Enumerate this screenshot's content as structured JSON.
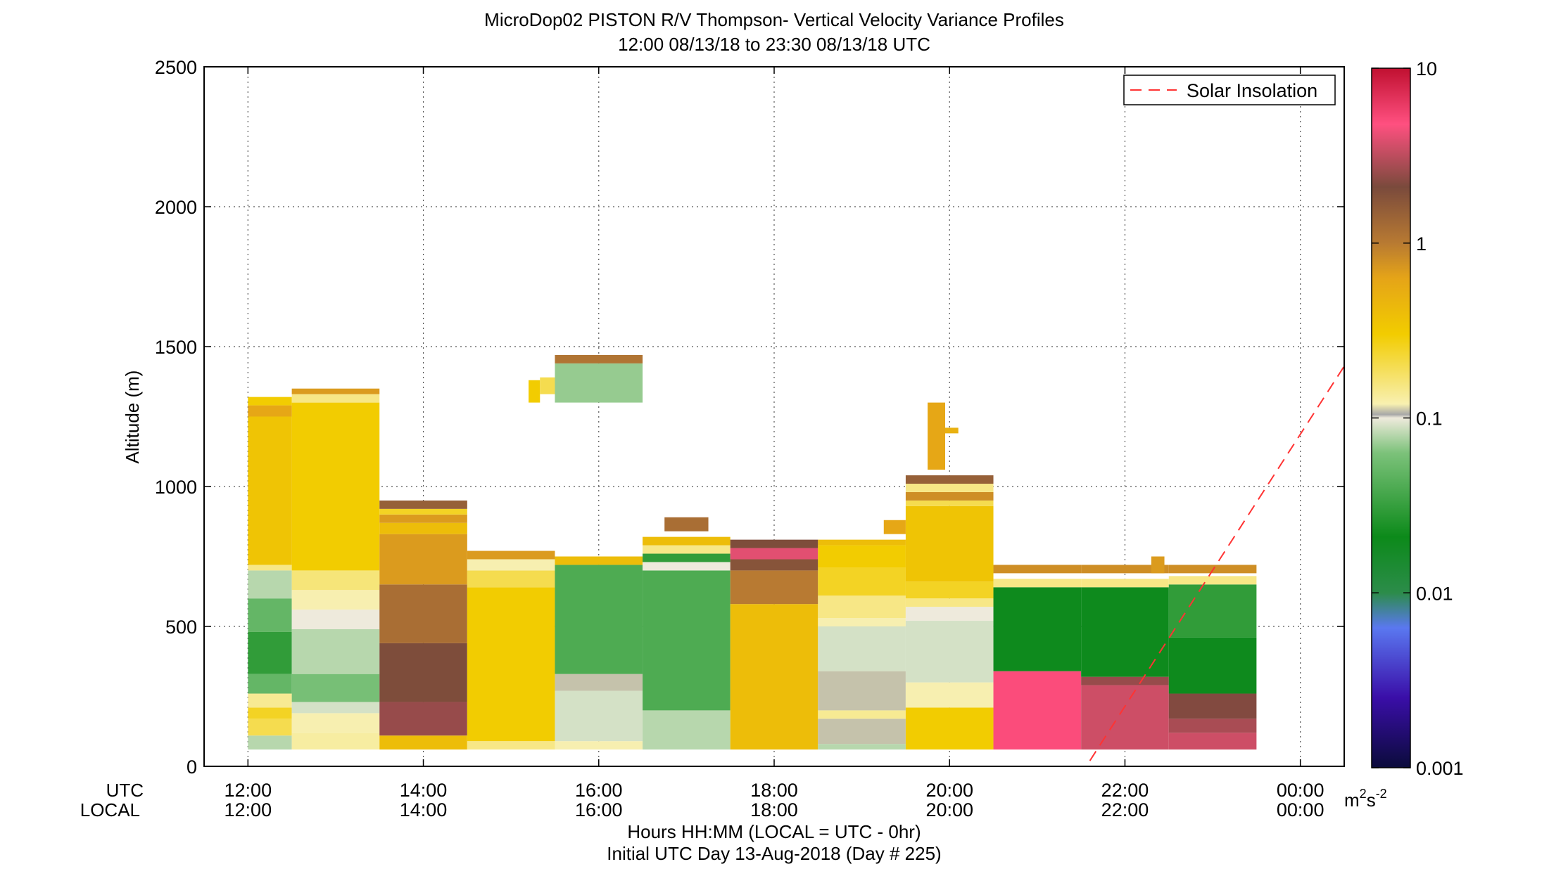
{
  "chart_data": {
    "type": "heatmap",
    "title": "MicroDop02 PISTON R/V Thompson- Vertical Velocity Variance Profiles",
    "subtitle": "12:00 08/13/18 to 23:30 08/13/18  UTC",
    "xlabel": "Hours HH:MM  (LOCAL = UTC - 0hr)",
    "xlabel2": "Initial UTC Day 13-Aug-2018 (Day # 225)",
    "ylabel": "Altitude (m)",
    "x_row_labels": [
      "UTC",
      "LOCAL"
    ],
    "xlim": [
      11.5,
      24.5
    ],
    "ylim": [
      0,
      2500
    ],
    "x_ticks": [
      12,
      14,
      16,
      18,
      20,
      22,
      24
    ],
    "x_tick_labels_utc": [
      "12:00",
      "14:00",
      "16:00",
      "18:00",
      "20:00",
      "22:00",
      "00:00"
    ],
    "x_tick_labels_local": [
      "12:00",
      "14:00",
      "16:00",
      "18:00",
      "20:00",
      "22:00",
      "00:00"
    ],
    "y_ticks": [
      0,
      500,
      1000,
      1500,
      2000,
      2500
    ],
    "y_tick_labels": [
      "0",
      "500",
      "1000",
      "1500",
      "2000",
      "2500"
    ],
    "grid": true,
    "legend": {
      "position": "top-right",
      "entries": [
        {
          "label": "Solar Insolation",
          "color": "#ff3333",
          "style": "dashed"
        }
      ]
    },
    "colorbar": {
      "scale": "log",
      "range": [
        0.001,
        10
      ],
      "tick_values": [
        0.001,
        0.01,
        0.1,
        1,
        10
      ],
      "tick_labels": [
        "0.001",
        "0.01",
        "0.1",
        "1",
        "10"
      ],
      "units_base": "m",
      "units_exp1": "2",
      "units_mid": "s",
      "units_exp2": "-2"
    },
    "solar_insolation_line": {
      "x": [
        21.6,
        24.5
      ],
      "y": [
        20,
        1430
      ]
    },
    "columns": [
      {
        "x": [
          12.0,
          12.5
        ],
        "segments": [
          {
            "y": [
              60,
              110
            ],
            "v": 0.08
          },
          {
            "y": [
              110,
              170
            ],
            "v": 0.2
          },
          {
            "y": [
              170,
              210
            ],
            "v": 0.25
          },
          {
            "y": [
              210,
              260
            ],
            "v": 0.14
          },
          {
            "y": [
              260,
              330
            ],
            "v": 0.05
          },
          {
            "y": [
              330,
              480
            ],
            "v": 0.03
          },
          {
            "y": [
              480,
              600
            ],
            "v": 0.05
          },
          {
            "y": [
              600,
              700
            ],
            "v": 0.08
          },
          {
            "y": [
              700,
              720
            ],
            "v": 0.15
          },
          {
            "y": [
              720,
              1250
            ],
            "v": 0.35
          },
          {
            "y": [
              1250,
              1290
            ],
            "v": 0.6
          },
          {
            "y": [
              1290,
              1320
            ],
            "v": 0.3
          }
        ]
      },
      {
        "x": [
          12.5,
          13.5
        ],
        "segments": [
          {
            "y": [
              60,
              120
            ],
            "v": 0.13
          },
          {
            "y": [
              120,
              190
            ],
            "v": 0.12
          },
          {
            "y": [
              190,
              230
            ],
            "v": 0.09
          },
          {
            "y": [
              230,
              330
            ],
            "v": 0.06
          },
          {
            "y": [
              330,
              490
            ],
            "v": 0.08
          },
          {
            "y": [
              490,
              560
            ],
            "v": 0.1
          },
          {
            "y": [
              560,
              630
            ],
            "v": 0.12
          },
          {
            "y": [
              630,
              700
            ],
            "v": 0.16
          },
          {
            "y": [
              700,
              1300
            ],
            "v": 0.3
          },
          {
            "y": [
              1300,
              1330
            ],
            "v": 0.15
          },
          {
            "y": [
              1330,
              1350
            ],
            "v": 0.7
          }
        ]
      },
      {
        "x": [
          13.5,
          14.5
        ],
        "segments": [
          {
            "y": [
              60,
              110
            ],
            "v": 0.4
          },
          {
            "y": [
              110,
              230
            ],
            "v": 2.5
          },
          {
            "y": [
              230,
              440
            ],
            "v": 2.0
          },
          {
            "y": [
              440,
              650
            ],
            "v": 1.2
          },
          {
            "y": [
              650,
              830
            ],
            "v": 0.7
          },
          {
            "y": [
              830,
              870
            ],
            "v": 0.4
          },
          {
            "y": [
              870,
              900
            ],
            "v": 0.7
          },
          {
            "y": [
              900,
              920
            ],
            "v": 0.25
          },
          {
            "y": [
              920,
              950
            ],
            "v": 1.5
          }
        ]
      },
      {
        "x": [
          14.5,
          15.5
        ],
        "segments": [
          {
            "y": [
              60,
              90
            ],
            "v": 0.15
          },
          {
            "y": [
              90,
              640
            ],
            "v": 0.3
          },
          {
            "y": [
              640,
              700
            ],
            "v": 0.2
          },
          {
            "y": [
              700,
              740
            ],
            "v": 0.12
          },
          {
            "y": [
              740,
              770
            ],
            "v": 0.7
          }
        ]
      },
      {
        "x": [
          15.5,
          16.5
        ],
        "segments": [
          {
            "y": [
              60,
              90
            ],
            "v": 0.12
          },
          {
            "y": [
              90,
              270
            ],
            "v": 0.09
          },
          {
            "y": [
              270,
              330
            ],
            "v": 0.11
          },
          {
            "y": [
              330,
              720
            ],
            "v": 0.04
          },
          {
            "y": [
              720,
              750
            ],
            "v": 0.4
          }
        ]
      },
      {
        "x": [
          16.5,
          17.5
        ],
        "segments": [
          {
            "y": [
              60,
              200
            ],
            "v": 0.08
          },
          {
            "y": [
              200,
              700
            ],
            "v": 0.04
          },
          {
            "y": [
              700,
              730
            ],
            "v": 0.1
          },
          {
            "y": [
              730,
              760
            ],
            "v": 0.03
          },
          {
            "y": [
              760,
              790
            ],
            "v": 0.15
          },
          {
            "y": [
              790,
              820
            ],
            "v": 0.4
          }
        ]
      },
      {
        "x": [
          17.5,
          18.5
        ],
        "segments": [
          {
            "y": [
              60,
              580
            ],
            "v": 0.4
          },
          {
            "y": [
              580,
              700
            ],
            "v": 1.0
          },
          {
            "y": [
              700,
              740
            ],
            "v": 1.8
          },
          {
            "y": [
              740,
              780
            ],
            "v": 4.0
          },
          {
            "y": [
              780,
              810
            ],
            "v": 2.0
          }
        ]
      },
      {
        "x": [
          18.5,
          19.5
        ],
        "segments": [
          {
            "y": [
              60,
              80
            ],
            "v": 0.08
          },
          {
            "y": [
              80,
              170
            ],
            "v": 0.11
          },
          {
            "y": [
              170,
              200
            ],
            "v": 0.14
          },
          {
            "y": [
              200,
              340
            ],
            "v": 0.11
          },
          {
            "y": [
              340,
              500
            ],
            "v": 0.09
          },
          {
            "y": [
              500,
              530
            ],
            "v": 0.12
          },
          {
            "y": [
              530,
              610
            ],
            "v": 0.15
          },
          {
            "y": [
              610,
              710
            ],
            "v": 0.25
          },
          {
            "y": [
              710,
              790
            ],
            "v": 0.3
          },
          {
            "y": [
              790,
              810
            ],
            "v": 0.4
          }
        ]
      },
      {
        "x": [
          19.5,
          20.5
        ],
        "segments": [
          {
            "y": [
              60,
              210
            ],
            "v": 0.3
          },
          {
            "y": [
              210,
              300
            ],
            "v": 0.12
          },
          {
            "y": [
              300,
              520
            ],
            "v": 0.09
          },
          {
            "y": [
              520,
              570
            ],
            "v": 0.1
          },
          {
            "y": [
              570,
              600
            ],
            "v": 0.15
          },
          {
            "y": [
              600,
              660
            ],
            "v": 0.25
          },
          {
            "y": [
              660,
              930
            ],
            "v": 0.35
          },
          {
            "y": [
              930,
              950
            ],
            "v": 0.2
          },
          {
            "y": [
              950,
              980
            ],
            "v": 0.8
          },
          {
            "y": [
              980,
              1010
            ],
            "v": 0.15
          },
          {
            "y": [
              1010,
              1040
            ],
            "v": 1.5
          }
        ]
      },
      {
        "x": [
          20.5,
          21.5
        ],
        "segments": [
          {
            "y": [
              60,
              340
            ],
            "v": 5.0
          },
          {
            "y": [
              340,
              640
            ],
            "v": 0.02
          },
          {
            "y": [
              640,
              670
            ],
            "v": 0.15
          },
          {
            "y": [
              690,
              720
            ],
            "v": 0.8
          }
        ]
      },
      {
        "x": [
          21.5,
          22.5
        ],
        "segments": [
          {
            "y": [
              60,
              290
            ],
            "v": 3.5
          },
          {
            "y": [
              290,
              320
            ],
            "v": 2.5
          },
          {
            "y": [
              320,
              640
            ],
            "v": 0.02
          },
          {
            "y": [
              640,
              670
            ],
            "v": 0.15
          },
          {
            "y": [
              690,
              720
            ],
            "v": 0.8
          }
        ]
      },
      {
        "x": [
          22.5,
          23.5
        ],
        "segments": [
          {
            "y": [
              60,
              120
            ],
            "v": 3.5
          },
          {
            "y": [
              120,
              170
            ],
            "v": 2.8
          },
          {
            "y": [
              170,
              260
            ],
            "v": 2.2
          },
          {
            "y": [
              260,
              460
            ],
            "v": 0.02
          },
          {
            "y": [
              460,
              650
            ],
            "v": 0.03
          },
          {
            "y": [
              650,
              680
            ],
            "v": 0.15
          },
          {
            "y": [
              690,
              720
            ],
            "v": 0.8
          }
        ]
      }
    ],
    "isolated_cells": [
      {
        "x": [
          15.2,
          15.33
        ],
        "y": [
          1300,
          1380
        ],
        "v": 0.3
      },
      {
        "x": [
          15.33,
          15.5
        ],
        "y": [
          1330,
          1390
        ],
        "v": 0.2
      },
      {
        "x": [
          15.5,
          16.5
        ],
        "y": [
          1300,
          1440
        ],
        "v": 0.07
      },
      {
        "x": [
          15.5,
          16.5
        ],
        "y": [
          1440,
          1470
        ],
        "v": 1.1
      },
      {
        "x": [
          19.25,
          19.5
        ],
        "y": [
          830,
          880
        ],
        "v": 0.6
      },
      {
        "x": [
          19.75,
          19.95
        ],
        "y": [
          1060,
          1300
        ],
        "v": 0.6
      },
      {
        "x": [
          19.95,
          20.1
        ],
        "y": [
          1190,
          1210
        ],
        "v": 0.5
      },
      {
        "x": [
          16.75,
          17.25
        ],
        "y": [
          840,
          890
        ],
        "v": 1.2
      },
      {
        "x": [
          22.3,
          22.45
        ],
        "y": [
          690,
          750
        ],
        "v": 0.7
      }
    ]
  }
}
